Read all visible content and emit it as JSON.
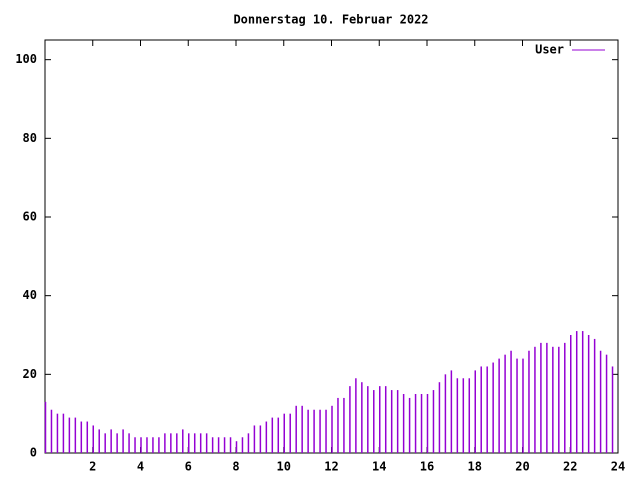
{
  "chart_data": {
    "type": "impulse",
    "title": "Donnerstag 10. Februar 2022",
    "series": [
      {
        "name": "User",
        "color": "#9400d3",
        "values": [
          13,
          11,
          10,
          10,
          9,
          9,
          8,
          8,
          7,
          6,
          5,
          6,
          5,
          6,
          5,
          4,
          4,
          4,
          4,
          4,
          5,
          5,
          5,
          6,
          5,
          5,
          5,
          5,
          4,
          4,
          4,
          4,
          3,
          4,
          5,
          7,
          7,
          8,
          9,
          9,
          10,
          10,
          12,
          12,
          11,
          11,
          11,
          11,
          12,
          14,
          14,
          17,
          19,
          18,
          17,
          16,
          17,
          17,
          16,
          16,
          15,
          14,
          15,
          15,
          15,
          16,
          18,
          20,
          21,
          19,
          19,
          19,
          21,
          22,
          22,
          23,
          24,
          25,
          26,
          24,
          24,
          26,
          27,
          28,
          28,
          27,
          27,
          28,
          30,
          31,
          31,
          30,
          29,
          26,
          25,
          22
        ]
      }
    ],
    "x": [
      0,
      0.25,
      0.5,
      0.75,
      1,
      1.25,
      1.5,
      1.75,
      2,
      2.25,
      2.5,
      2.75,
      3,
      3.25,
      3.5,
      3.75,
      4,
      4.25,
      4.5,
      4.75,
      5,
      5.25,
      5.5,
      5.75,
      6,
      6.25,
      6.5,
      6.75,
      7,
      7.25,
      7.5,
      7.75,
      8,
      8.25,
      8.5,
      8.75,
      9,
      9.25,
      9.5,
      9.75,
      10,
      10.25,
      10.5,
      10.75,
      11,
      11.25,
      11.5,
      11.75,
      12,
      12.25,
      12.5,
      12.75,
      13,
      13.25,
      13.5,
      13.75,
      14,
      14.25,
      14.5,
      14.75,
      15,
      15.25,
      15.5,
      15.75,
      16,
      16.25,
      16.5,
      16.75,
      17,
      17.25,
      17.5,
      17.75,
      18,
      18.25,
      18.5,
      18.75,
      19,
      19.25,
      19.5,
      19.75,
      20,
      20.25,
      20.5,
      20.75,
      21,
      21.25,
      21.5,
      21.75,
      22,
      22.25,
      22.5,
      22.75,
      23,
      23.25,
      23.5,
      23.75
    ],
    "xlim": [
      0,
      24
    ],
    "xticks": [
      2,
      4,
      6,
      8,
      10,
      12,
      14,
      16,
      18,
      20,
      22,
      24
    ],
    "ylim": [
      0,
      105
    ],
    "yticks": [
      0,
      20,
      40,
      60,
      80,
      100
    ],
    "legend": "upper right"
  }
}
